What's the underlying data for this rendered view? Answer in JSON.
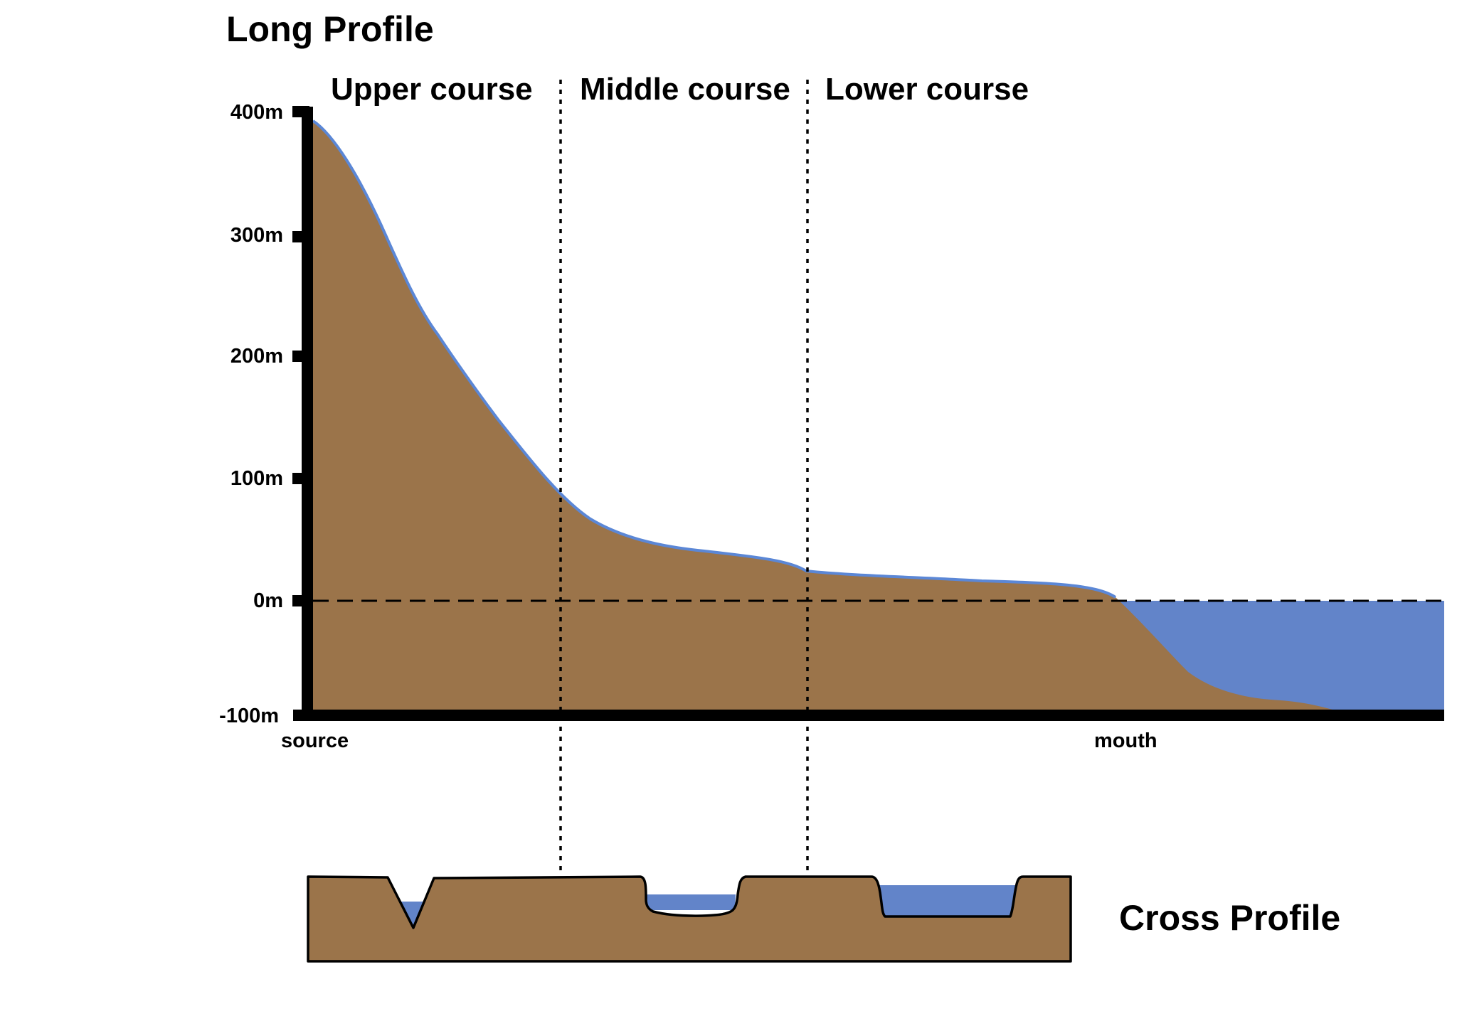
{
  "long_profile": {
    "title": "Long Profile",
    "courses": [
      "Upper course",
      "Middle course",
      "Lower course"
    ],
    "y_axis": {
      "ticks": [
        "400m",
        "300m",
        "200m",
        "100m",
        "0m",
        "-100m"
      ]
    },
    "x_axis": {
      "start_label": "source",
      "end_label": "mouth"
    }
  },
  "cross_profile": {
    "title": "Cross Profile"
  },
  "colors": {
    "land": "#9b744a",
    "water": "#6284c9",
    "river_line": "#5b87d6",
    "axis": "#000000"
  }
}
